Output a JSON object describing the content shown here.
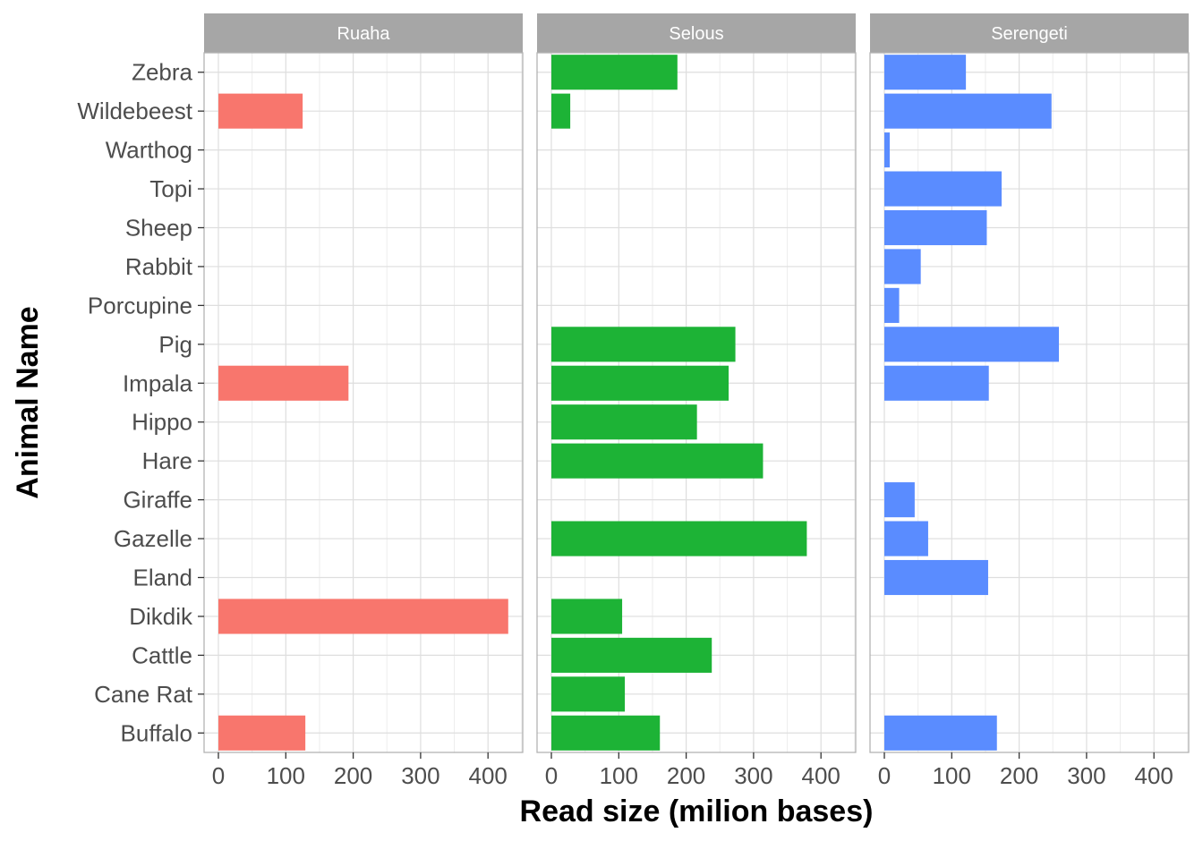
{
  "chart_data": {
    "type": "bar",
    "orientation": "horizontal",
    "xlabel": "Read size (milion bases)",
    "ylabel": "Animal Name",
    "xlim": [
      0,
      420
    ],
    "x_ticks": [
      "0",
      "100",
      "200",
      "300",
      "400"
    ],
    "categories": [
      "Zebra",
      "Wildebeest",
      "Warthog",
      "Topi",
      "Sheep",
      "Rabbit",
      "Porcupine",
      "Pig",
      "Impala",
      "Hippo",
      "Hare",
      "Giraffe",
      "Gazelle",
      "Eland",
      "Dikdik",
      "Cattle",
      "Cane Rat",
      "Buffalo"
    ],
    "grid": true,
    "facets": [
      {
        "name": "Ruaha",
        "color": "#F8766D",
        "values": [
          null,
          125,
          null,
          null,
          null,
          null,
          null,
          null,
          193,
          null,
          null,
          null,
          null,
          null,
          430,
          null,
          null,
          129
        ]
      },
      {
        "name": "Selous",
        "color": "#1DB336",
        "values": [
          187,
          28,
          null,
          null,
          null,
          null,
          null,
          273,
          263,
          216,
          314,
          null,
          379,
          null,
          105,
          238,
          109,
          161
        ]
      },
      {
        "name": "Serengeti",
        "color": "#5A8CFF",
        "values": [
          121,
          248,
          8,
          174,
          152,
          54,
          22,
          259,
          155,
          null,
          null,
          45,
          65,
          154,
          null,
          null,
          null,
          167
        ]
      }
    ]
  }
}
